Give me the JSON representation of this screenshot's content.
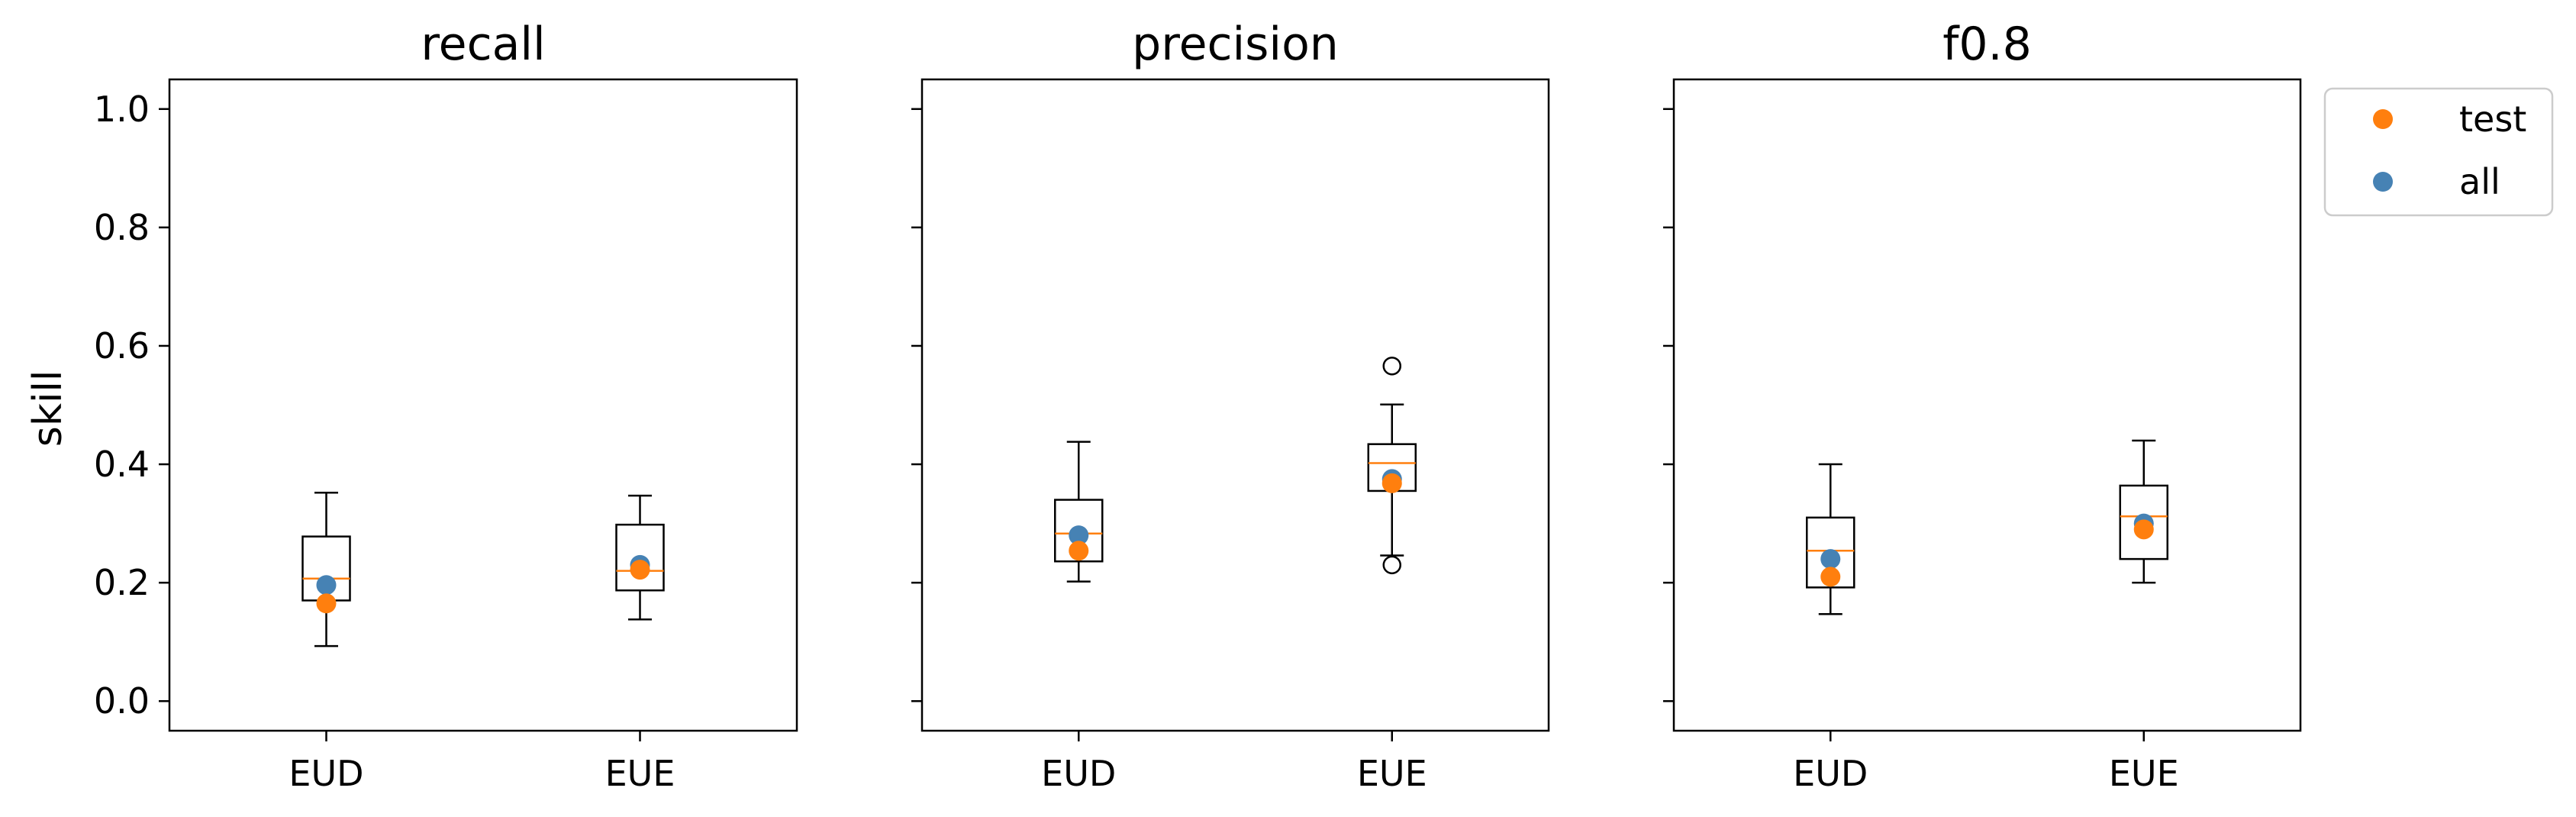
{
  "colors": {
    "test": "#ff7f0e",
    "all": "#4682b4",
    "median": "#ff7f0e",
    "box": "#000000"
  },
  "chart_data": {
    "type": "box",
    "ylabel": "skill",
    "ylim": [
      -0.05,
      1.05
    ],
    "yticks": [
      0.0,
      0.2,
      0.4,
      0.6,
      0.8,
      1.0
    ],
    "ytick_labels": [
      "0.0",
      "0.2",
      "0.4",
      "0.6",
      "0.8",
      "1.0"
    ],
    "categories": [
      "EUD",
      "EUE"
    ],
    "legend": {
      "placement": "outside-upper-right",
      "entries": [
        "test",
        "all"
      ]
    },
    "panels": [
      {
        "title": "recall",
        "boxes": [
          {
            "category": "EUD",
            "whisker_low": 0.093,
            "q1": 0.17,
            "median": 0.207,
            "q3": 0.278,
            "whisker_high": 0.352,
            "outliers": [],
            "test": 0.165,
            "all": 0.196
          },
          {
            "category": "EUE",
            "whisker_low": 0.138,
            "q1": 0.187,
            "median": 0.22,
            "q3": 0.298,
            "whisker_high": 0.347,
            "outliers": [],
            "test": 0.222,
            "all": 0.23
          }
        ]
      },
      {
        "title": "precision",
        "boxes": [
          {
            "category": "EUD",
            "whisker_low": 0.202,
            "q1": 0.236,
            "median": 0.283,
            "q3": 0.34,
            "whisker_high": 0.438,
            "outliers": [],
            "test": 0.254,
            "all": 0.28
          },
          {
            "category": "EUE",
            "whisker_low": 0.246,
            "q1": 0.355,
            "median": 0.402,
            "q3": 0.434,
            "whisker_high": 0.501,
            "outliers": [
              0.566,
              0.23
            ],
            "test": 0.368,
            "all": 0.375
          }
        ]
      },
      {
        "title": "f0.8",
        "boxes": [
          {
            "category": "EUD",
            "whisker_low": 0.147,
            "q1": 0.192,
            "median": 0.254,
            "q3": 0.31,
            "whisker_high": 0.4,
            "outliers": [],
            "test": 0.21,
            "all": 0.24
          },
          {
            "category": "EUE",
            "whisker_low": 0.2,
            "q1": 0.24,
            "median": 0.312,
            "q3": 0.364,
            "whisker_high": 0.44,
            "outliers": [],
            "test": 0.29,
            "all": 0.3
          }
        ]
      }
    ]
  }
}
